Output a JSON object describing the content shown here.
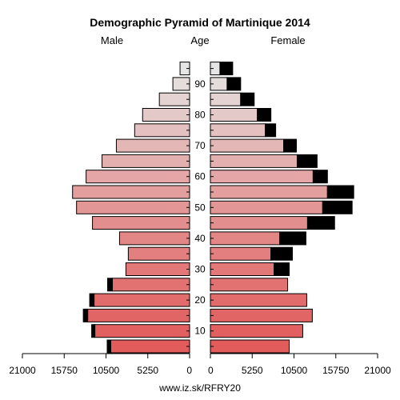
{
  "chart_data": {
    "type": "bar",
    "title": "Demographic Pyramid of Martinique 2014",
    "left_label": "Male",
    "center_label": "Age",
    "right_label": "Female",
    "footer": "www.iz.sk/RFRY20",
    "age_groups": [
      "0-4",
      "5-9",
      "10-14",
      "15-19",
      "20-24",
      "25-29",
      "30-34",
      "35-39",
      "40-44",
      "45-49",
      "50-54",
      "55-59",
      "60-64",
      "65-69",
      "70-74",
      "75-79",
      "80-84",
      "85-89",
      "90+"
    ],
    "age_tick_labels": [
      "10",
      "20",
      "30",
      "40",
      "50",
      "60",
      "70",
      "80",
      "90"
    ],
    "x_tick_labels": [
      "21000",
      "15750",
      "10500",
      "5250",
      "0",
      "0",
      "5250",
      "10500",
      "15750",
      "21000"
    ],
    "xlim": [
      0,
      21000
    ],
    "series": [
      {
        "name": "Male",
        "side": "left",
        "values": [
          9900,
          11900,
          12800,
          12000,
          9700,
          8000,
          7700,
          8800,
          12200,
          14200,
          14700,
          13000,
          11000,
          9200,
          6900,
          5900,
          3800,
          2100,
          1200
        ],
        "excess": [
          450,
          400,
          550,
          550,
          600,
          0,
          0,
          0,
          0,
          0,
          0,
          0,
          0,
          0,
          0,
          0,
          0,
          0,
          0
        ]
      },
      {
        "name": "Female",
        "side": "right",
        "values": [
          9900,
          11600,
          12800,
          12100,
          9700,
          8000,
          7600,
          8700,
          12200,
          14100,
          14700,
          12900,
          10900,
          9200,
          6900,
          5900,
          3800,
          2100,
          1200
        ],
        "excess": [
          0,
          0,
          0,
          0,
          0,
          1900,
          2700,
          3300,
          3400,
          3700,
          3300,
          1800,
          2500,
          1600,
          1300,
          1700,
          1700,
          1700,
          1600
        ]
      }
    ],
    "colors": {
      "bar_bottom": "#e25c5c",
      "bar_top": "#e5e5e5",
      "excess": "#000000",
      "outline": "#000000",
      "background": "#ffffff"
    },
    "grid": false,
    "legend": "none"
  }
}
